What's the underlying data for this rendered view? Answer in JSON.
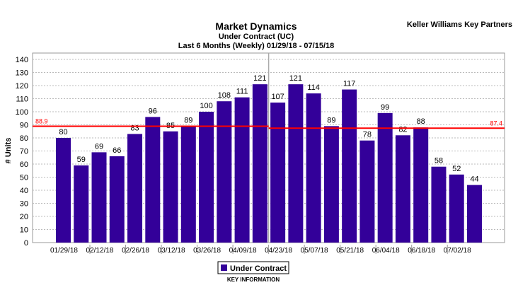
{
  "brand": "Keller Williams Key Partners",
  "chart_data": {
    "type": "bar",
    "title": "Market Dynamics",
    "subtitle": "Under Contract (UC)",
    "subtitle2": "Last 6 Months (Weekly) 01/29/18 - 07/15/18",
    "ylabel": "# Units",
    "xlabel": "",
    "ylim": [
      0,
      140
    ],
    "yticks": [
      0,
      10,
      20,
      30,
      40,
      50,
      60,
      70,
      80,
      90,
      100,
      110,
      120,
      130,
      140
    ],
    "grid": true,
    "xtick_labels": [
      "01/29/18",
      "02/12/18",
      "02/26/18",
      "03/12/18",
      "03/26/18",
      "04/09/18",
      "04/23/18",
      "05/07/18",
      "05/21/18",
      "06/04/18",
      "06/18/18",
      "07/02/18"
    ],
    "series": [
      {
        "name": "Under Contract",
        "color": "#330099",
        "values": [
          80,
          59,
          69,
          66,
          83,
          96,
          85,
          89,
          100,
          108,
          111,
          121,
          107,
          121,
          114,
          89,
          117,
          78,
          99,
          82,
          88,
          58,
          52,
          44
        ]
      }
    ],
    "averages": [
      {
        "label": "88.9",
        "value": 88.9,
        "from_bar": 0,
        "to_bar": 11
      },
      {
        "label": "87.4",
        "value": 87.4,
        "from_bar": 12,
        "to_bar": 23
      }
    ],
    "average_color": "#ff0000",
    "legend_title": "KEY INFORMATION",
    "legend_placement": "bottom-center"
  }
}
